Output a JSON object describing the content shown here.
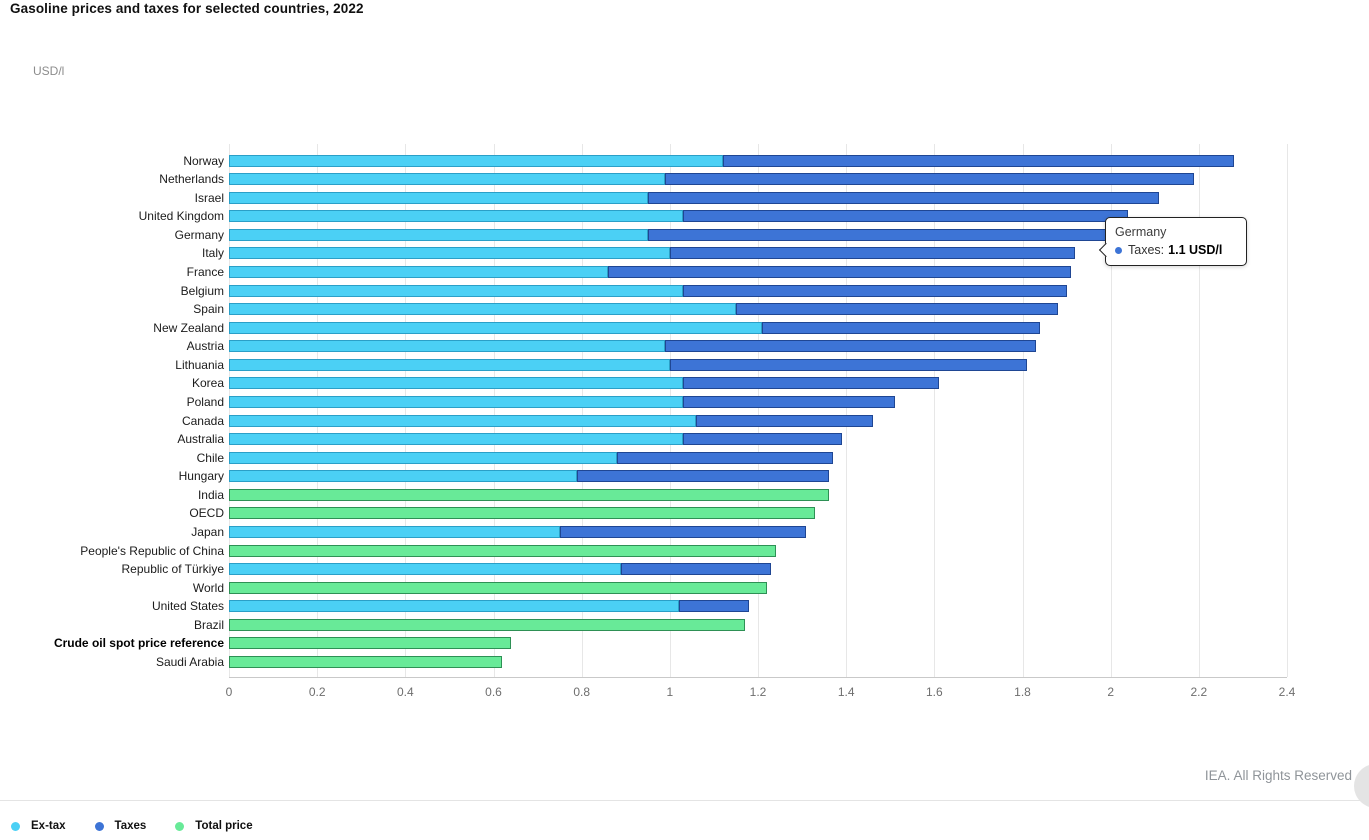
{
  "title": "Gasoline prices and taxes for selected countries, 2022",
  "unit_label": "USD/l",
  "footer": {
    "copyright": "IEA. All Rights Reserved"
  },
  "tooltip": {
    "country": "Germany",
    "series_label": "Taxes:",
    "value_text": "1.1 USD/l",
    "dot_color": "#3d74d6"
  },
  "legend": [
    {
      "label": "Ex-tax",
      "color": "#4bd0f5"
    },
    {
      "label": "Taxes",
      "color": "#3d74d6"
    },
    {
      "label": "Total price",
      "color": "#68ea98"
    }
  ],
  "chart_data": {
    "type": "bar",
    "orientation": "horizontal-stacked",
    "title": "Gasoline prices and taxes for selected countries, 2022",
    "xlabel": "USD/l",
    "ylabel": "",
    "xlim": [
      0,
      2.4
    ],
    "grid": "vertical",
    "legend_position": "bottom-left",
    "series_names": [
      "Ex-tax",
      "Taxes",
      "Total price"
    ],
    "series_colors": {
      "ex_tax": "#4bd0f5",
      "taxes": "#3d74d6",
      "total_price": "#68ea98"
    },
    "x_ticks": [
      {
        "value": 0,
        "label": "0"
      },
      {
        "value": 0.2,
        "label": "0.2"
      },
      {
        "value": 0.4,
        "label": "0.4"
      },
      {
        "value": 0.6,
        "label": "0.6"
      },
      {
        "value": 0.8,
        "label": "0.8"
      },
      {
        "value": 1,
        "label": "1"
      },
      {
        "value": 1.2,
        "label": "1.2"
      },
      {
        "value": 1.4,
        "label": "1.4"
      },
      {
        "value": 1.6,
        "label": "1.6"
      },
      {
        "value": 1.8,
        "label": "1.8"
      },
      {
        "value": 2,
        "label": "2"
      },
      {
        "value": 2.2,
        "label": "2.2"
      },
      {
        "value": 2.4,
        "label": "2.4"
      }
    ],
    "rows": [
      {
        "country": "Norway",
        "ex_tax": 1.12,
        "taxes": 1.16
      },
      {
        "country": "Netherlands",
        "ex_tax": 0.99,
        "taxes": 1.2
      },
      {
        "country": "Israel",
        "ex_tax": 0.95,
        "taxes": 1.16
      },
      {
        "country": "United Kingdom",
        "ex_tax": 1.03,
        "taxes": 1.01
      },
      {
        "country": "Germany",
        "ex_tax": 0.95,
        "taxes": 1.1
      },
      {
        "country": "Italy",
        "ex_tax": 1.0,
        "taxes": 0.92
      },
      {
        "country": "France",
        "ex_tax": 0.86,
        "taxes": 1.05
      },
      {
        "country": "Belgium",
        "ex_tax": 1.03,
        "taxes": 0.87
      },
      {
        "country": "Spain",
        "ex_tax": 1.15,
        "taxes": 0.73
      },
      {
        "country": "New Zealand",
        "ex_tax": 1.21,
        "taxes": 0.63
      },
      {
        "country": "Austria",
        "ex_tax": 0.99,
        "taxes": 0.84
      },
      {
        "country": "Lithuania",
        "ex_tax": 1.0,
        "taxes": 0.81
      },
      {
        "country": "Korea",
        "ex_tax": 1.03,
        "taxes": 0.58
      },
      {
        "country": "Poland",
        "ex_tax": 1.03,
        "taxes": 0.48
      },
      {
        "country": "Canada",
        "ex_tax": 1.06,
        "taxes": 0.4
      },
      {
        "country": "Australia",
        "ex_tax": 1.03,
        "taxes": 0.36
      },
      {
        "country": "Chile",
        "ex_tax": 0.88,
        "taxes": 0.49
      },
      {
        "country": "Hungary",
        "ex_tax": 0.79,
        "taxes": 0.57
      },
      {
        "country": "India",
        "total_price": 1.36
      },
      {
        "country": "OECD",
        "total_price": 1.33
      },
      {
        "country": "Japan",
        "ex_tax": 0.75,
        "taxes": 0.56
      },
      {
        "country": "People's Republic of China",
        "total_price": 1.24
      },
      {
        "country": "Republic of Türkiye",
        "ex_tax": 0.89,
        "taxes": 0.34
      },
      {
        "country": "World",
        "total_price": 1.22
      },
      {
        "country": "United States",
        "ex_tax": 1.02,
        "taxes": 0.16
      },
      {
        "country": "Brazil",
        "total_price": 1.17
      },
      {
        "country": "Crude oil spot price reference",
        "total_price": 0.64,
        "bold": true
      },
      {
        "country": "Saudi Arabia",
        "total_price": 0.62
      }
    ]
  }
}
